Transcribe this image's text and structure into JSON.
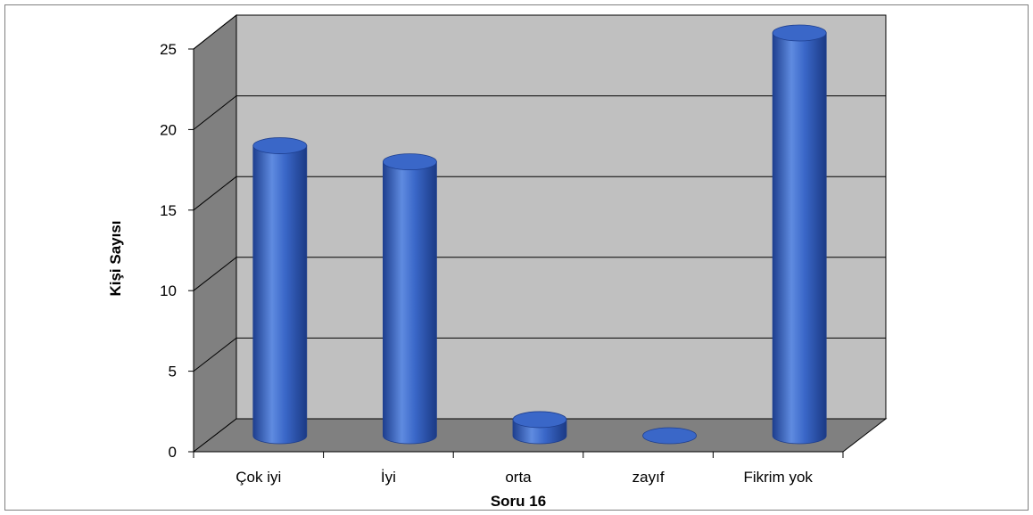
{
  "chart_data": {
    "type": "bar",
    "style": "3d-cylinder",
    "title": "",
    "xlabel": "Soru 16",
    "ylabel": "Kişi Sayısı",
    "categories": [
      "Çok iyi",
      "İyi",
      "orta",
      "zayıf",
      "Fikrim yok"
    ],
    "values": [
      18,
      17,
      1,
      0,
      25
    ],
    "ylim": [
      0,
      25
    ],
    "yticks": [
      0,
      5,
      10,
      15,
      20,
      25
    ],
    "grid": true,
    "legend": "none",
    "colors": {
      "bar": "#3a67c8",
      "bar_dark": "#1e3f8f",
      "bar_light": "#8fb0ef",
      "wall": "#c0c0c0",
      "side_wall": "#808080",
      "floor": "#808080",
      "gridline": "#000000"
    }
  }
}
